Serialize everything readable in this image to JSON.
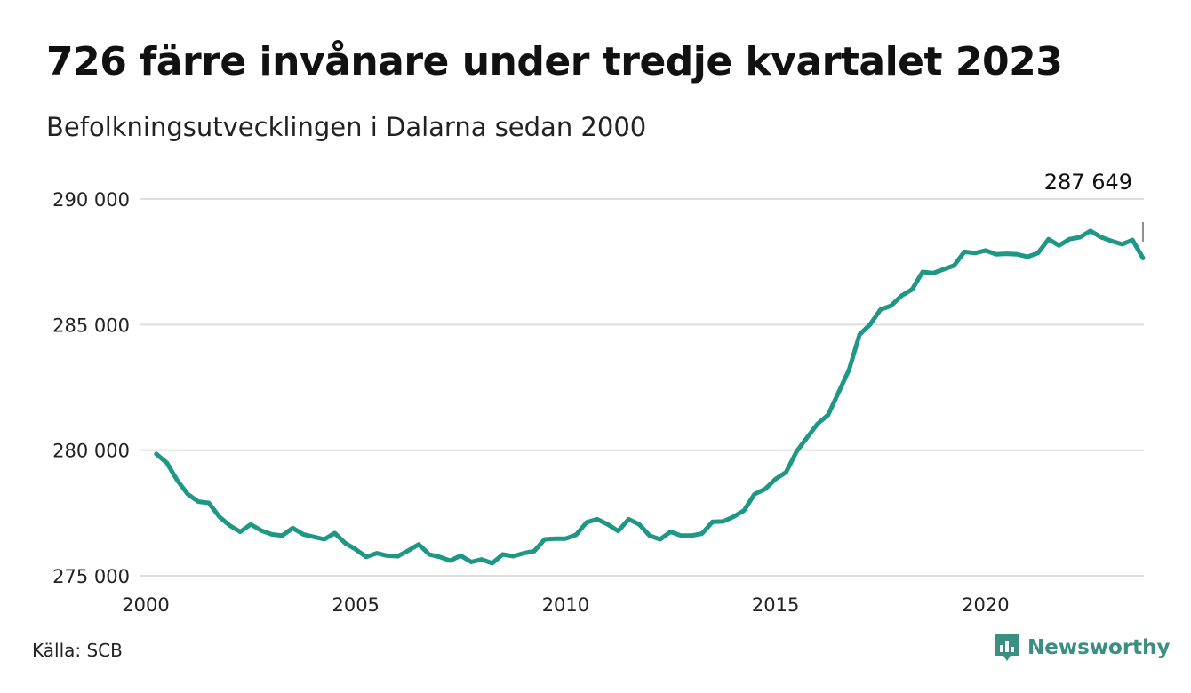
{
  "title": "726 färre invånare under tredje kvartalet 2023",
  "subtitle": "Befolkningsutvecklingen i Dalarna sedan 2000",
  "source": "Källa: SCB",
  "brand": {
    "name": "Newsworthy",
    "logo_icon": "bar-chart-speech-bubble-icon",
    "color": "#3b8f80"
  },
  "chart_data": {
    "type": "line",
    "title": "",
    "xlabel": "",
    "ylabel": "",
    "xlim": [
      2000,
      2023.75
    ],
    "ylim": [
      275000,
      290000
    ],
    "x_ticks": [
      2000,
      2005,
      2010,
      2015,
      2020
    ],
    "x_tick_labels": [
      "2000",
      "2005",
      "2010",
      "2015",
      "2020"
    ],
    "y_ticks": [
      275000,
      280000,
      285000,
      290000
    ],
    "y_tick_labels": [
      "275 000",
      "280 000",
      "285 000",
      "290 000"
    ],
    "grid": "horizontal",
    "line_color": "#1e9785",
    "end_label": "287 649",
    "series": [
      {
        "x": [
          2000.25,
          2000.5,
          2000.75,
          2001.0,
          2001.25,
          2001.5,
          2001.75,
          2002.0,
          2002.25,
          2002.5,
          2002.75,
          2003.0,
          2003.25,
          2003.5,
          2003.75,
          2004.0,
          2004.25,
          2004.5,
          2004.75,
          2005.0,
          2005.25,
          2005.5,
          2005.75,
          2006.0,
          2006.25,
          2006.5,
          2006.75,
          2007.0,
          2007.25,
          2007.5,
          2007.75,
          2008.0,
          2008.25,
          2008.5,
          2008.75,
          2009.0,
          2009.25,
          2009.5,
          2009.75,
          2010.0,
          2010.25,
          2010.5,
          2010.75,
          2011.0,
          2011.25,
          2011.5,
          2011.75,
          2012.0,
          2012.25,
          2012.5,
          2012.75,
          2013.0,
          2013.25,
          2013.5,
          2013.75,
          2014.0,
          2014.25,
          2014.5,
          2014.75,
          2015.0,
          2015.25,
          2015.5,
          2015.75,
          2016.0,
          2016.25,
          2016.5,
          2016.75,
          2017.0,
          2017.25,
          2017.5,
          2017.75,
          2018.0,
          2018.25,
          2018.5,
          2018.75,
          2019.0,
          2019.25,
          2019.5,
          2019.75,
          2020.0,
          2020.25,
          2020.5,
          2020.75,
          2021.0,
          2021.25,
          2021.5,
          2021.75,
          2022.0,
          2022.25,
          2022.5,
          2022.75,
          2023.0,
          2023.25,
          2023.5,
          2023.75
        ],
        "y": [
          279850,
          279500,
          278800,
          278250,
          277950,
          277900,
          277350,
          277000,
          276750,
          277050,
          276800,
          276650,
          276600,
          276900,
          276650,
          276550,
          276450,
          276700,
          276300,
          276050,
          275750,
          275900,
          275800,
          275780,
          276000,
          276250,
          275850,
          275750,
          275600,
          275800,
          275550,
          275650,
          275500,
          275850,
          275780,
          275900,
          275980,
          276450,
          276480,
          276480,
          276630,
          277130,
          277250,
          277050,
          276780,
          277250,
          277050,
          276600,
          276450,
          276750,
          276600,
          276600,
          276680,
          277150,
          277160,
          277350,
          277600,
          278250,
          278450,
          278850,
          279120,
          279950,
          280500,
          281050,
          281400,
          282300,
          283200,
          284600,
          285000,
          285600,
          285750,
          286150,
          286400,
          287100,
          287050,
          287200,
          287350,
          287900,
          287850,
          287950,
          287800,
          287820,
          287800,
          287700,
          287850,
          288400,
          288150,
          288400,
          288480,
          288730,
          288480,
          288330,
          288200,
          288370,
          287649
        ]
      }
    ]
  }
}
